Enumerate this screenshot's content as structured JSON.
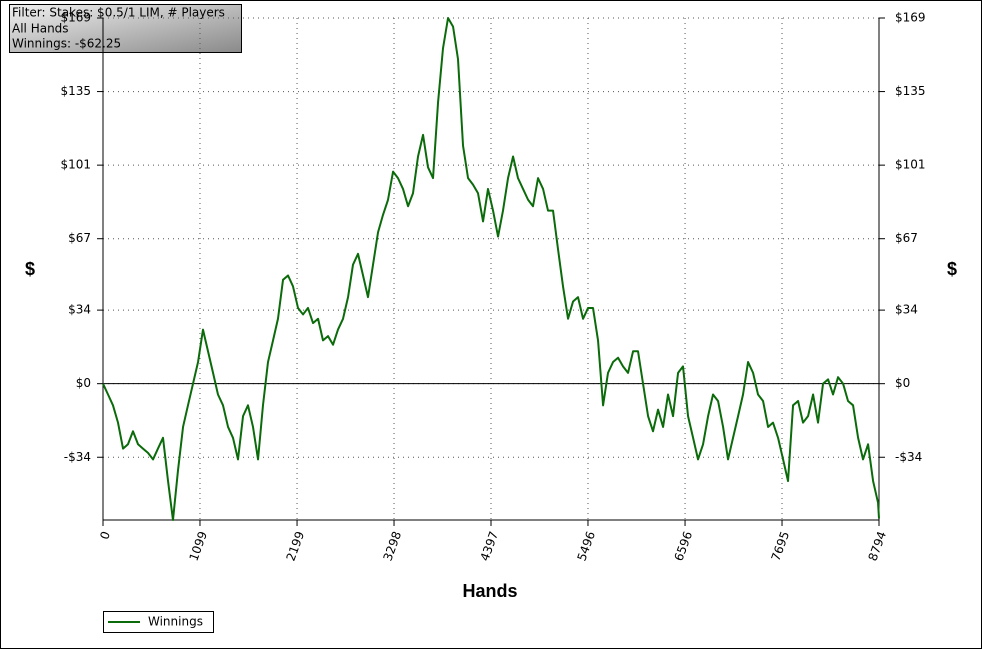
{
  "chart_data": {
    "type": "line",
    "info_lines": [
      "Filter: Stakes: $0.5/1 LIM, # Players",
      "All Hands",
      "Winnings: -$62.25"
    ],
    "xlabel": "Hands",
    "ylabel": "$",
    "y2label": "$",
    "xlim": [
      0,
      8794
    ],
    "xticks": [
      0,
      1099,
      2199,
      3298,
      4397,
      5496,
      6596,
      7695,
      8794
    ],
    "ylim": [
      -63,
      169
    ],
    "yticks": [
      {
        "value": -34,
        "label": "-$34"
      },
      {
        "value": 0,
        "label": "$0"
      },
      {
        "value": 34,
        "label": "$34"
      },
      {
        "value": 67,
        "label": "$67"
      },
      {
        "value": 101,
        "label": "$101"
      },
      {
        "value": 135,
        "label": "$135"
      },
      {
        "value": 169,
        "label": "$169"
      }
    ],
    "grid": true,
    "legend": "bottom-left",
    "x": [
      0,
      57,
      113,
      170,
      227,
      283,
      340,
      397,
      453,
      510,
      567,
      623,
      680,
      737,
      793,
      850,
      907,
      963,
      1020,
      1077,
      1133,
      1190,
      1247,
      1303,
      1360,
      1417,
      1473,
      1530,
      1587,
      1643,
      1700,
      1757,
      1813,
      1870,
      1927,
      1983,
      2040,
      2097,
      2153,
      2210,
      2267,
      2323,
      2380,
      2437,
      2493,
      2550,
      2607,
      2663,
      2720,
      2777,
      2833,
      2890,
      2947,
      3003,
      3060,
      3117,
      3173,
      3230,
      3287,
      3343,
      3400,
      3457,
      3513,
      3570,
      3627,
      3683,
      3740,
      3797,
      3853,
      3910,
      3967,
      4023,
      4080,
      4137,
      4193,
      4250,
      4307,
      4363,
      4420,
      4477,
      4533,
      4590,
      4647,
      4703,
      4760,
      4817,
      4873,
      4930,
      4987,
      5043,
      5100,
      5157,
      5213,
      5270,
      5327,
      5383,
      5440,
      5497,
      5553,
      5610,
      5667,
      5723,
      5780,
      5837,
      5893,
      5950,
      6007,
      6063,
      6120,
      6177,
      6233,
      6290,
      6347,
      6403,
      6460,
      6517,
      6573,
      6630,
      6687,
      6743,
      6800,
      6857,
      6913,
      6970,
      7027,
      7083,
      7140,
      7197,
      7253,
      7310,
      7367,
      7423,
      7480,
      7537,
      7593,
      7650,
      7707,
      7763,
      7820,
      7877,
      7933,
      7990,
      8047,
      8103,
      8160,
      8217,
      8273,
      8330,
      8387,
      8443,
      8500,
      8557,
      8613,
      8670,
      8727,
      8783,
      8794
    ],
    "series": [
      {
        "name": "Winnings",
        "color": "#0b6b0b",
        "values": [
          0,
          -5,
          -10,
          -18,
          -30,
          -28,
          -22,
          -28,
          -30,
          -32,
          -35,
          -30,
          -25,
          -45,
          -63,
          -40,
          -20,
          -10,
          0,
          10,
          25,
          15,
          5,
          -5,
          -10,
          -20,
          -25,
          -35,
          -15,
          -10,
          -20,
          -35,
          -10,
          10,
          20,
          30,
          48,
          50,
          45,
          35,
          32,
          35,
          28,
          30,
          20,
          22,
          18,
          25,
          30,
          40,
          55,
          60,
          50,
          40,
          55,
          70,
          78,
          85,
          98,
          95,
          90,
          82,
          88,
          105,
          115,
          100,
          95,
          130,
          155,
          169,
          165,
          150,
          110,
          95,
          92,
          88,
          75,
          90,
          80,
          68,
          80,
          95,
          105,
          95,
          90,
          85,
          82,
          95,
          90,
          80,
          80,
          62,
          45,
          30,
          38,
          40,
          30,
          35,
          35,
          20,
          -10,
          5,
          10,
          12,
          8,
          5,
          15,
          15,
          0,
          -15,
          -22,
          -12,
          -20,
          -5,
          -15,
          5,
          8,
          -15,
          -25,
          -35,
          -28,
          -15,
          -5,
          -8,
          -20,
          -35,
          -25,
          -15,
          -5,
          10,
          5,
          -5,
          -8,
          -20,
          -18,
          -25,
          -35,
          -45,
          -10,
          -8,
          -18,
          -15,
          -5,
          -18,
          0,
          2,
          -5,
          3,
          0,
          -8,
          -10,
          -25,
          -35,
          -28,
          -45,
          -55,
          -62.25
        ]
      }
    ]
  }
}
